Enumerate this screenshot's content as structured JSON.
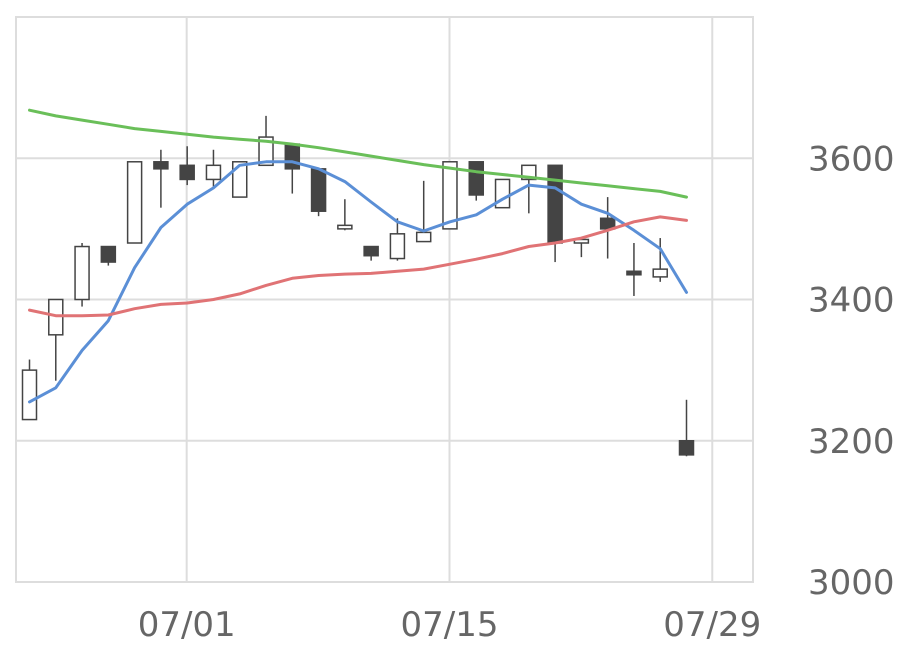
{
  "chart_data": {
    "type": "candlestick",
    "x_ticks": [
      "07/01",
      "07/15",
      "07/29"
    ],
    "y_ticks": [
      3000,
      3200,
      3400,
      3600
    ],
    "ylim": [
      3000,
      3800
    ],
    "grid": true,
    "y_axis_position": "right",
    "candles": [
      {
        "open": 3230,
        "high": 3315,
        "low": 3230,
        "close": 3300
      },
      {
        "open": 3350,
        "high": 3400,
        "low": 3285,
        "close": 3400
      },
      {
        "open": 3400,
        "high": 3480,
        "low": 3390,
        "close": 3475
      },
      {
        "open": 3475,
        "high": 3475,
        "low": 3448,
        "close": 3453
      },
      {
        "open": 3480,
        "high": 3595,
        "low": 3480,
        "close": 3595
      },
      {
        "open": 3595,
        "high": 3612,
        "low": 3530,
        "close": 3585
      },
      {
        "open": 3590,
        "high": 3617,
        "low": 3562,
        "close": 3570
      },
      {
        "open": 3570,
        "high": 3612,
        "low": 3560,
        "close": 3590
      },
      {
        "open": 3545,
        "high": 3595,
        "low": 3545,
        "close": 3595
      },
      {
        "open": 3590,
        "high": 3660,
        "low": 3590,
        "close": 3630
      },
      {
        "open": 3620,
        "high": 3620,
        "low": 3550,
        "close": 3585
      },
      {
        "open": 3585,
        "high": 3585,
        "low": 3518,
        "close": 3525
      },
      {
        "open": 3500,
        "high": 3542,
        "low": 3498,
        "close": 3505
      },
      {
        "open": 3475,
        "high": 3475,
        "low": 3455,
        "close": 3462
      },
      {
        "open": 3458,
        "high": 3515,
        "low": 3455,
        "close": 3493
      },
      {
        "open": 3482,
        "high": 3568,
        "low": 3482,
        "close": 3495
      },
      {
        "open": 3500,
        "high": 3595,
        "low": 3500,
        "close": 3595
      },
      {
        "open": 3595,
        "high": 3595,
        "low": 3540,
        "close": 3548
      },
      {
        "open": 3530,
        "high": 3570,
        "low": 3530,
        "close": 3570
      },
      {
        "open": 3570,
        "high": 3590,
        "low": 3522,
        "close": 3590
      },
      {
        "open": 3590,
        "high": 3590,
        "low": 3453,
        "close": 3480
      },
      {
        "open": 3480,
        "high": 3488,
        "low": 3460,
        "close": 3485
      },
      {
        "open": 3515,
        "high": 3545,
        "low": 3458,
        "close": 3500
      },
      {
        "open": 3440,
        "high": 3480,
        "low": 3405,
        "close": 3435
      },
      {
        "open": 3432,
        "high": 3487,
        "low": 3425,
        "close": 3443
      },
      {
        "open": 3200,
        "high": 3258,
        "low": 3178,
        "close": 3180
      }
    ],
    "series": [
      {
        "color": "#5b8fd6",
        "values": [
          3255,
          3275,
          3328,
          3370,
          3445,
          3502,
          3535,
          3558,
          3590,
          3595,
          3595,
          3585,
          3567,
          3538,
          3510,
          3497,
          3510,
          3520,
          3542,
          3562,
          3558,
          3535,
          3522,
          3498,
          3472,
          3410
        ]
      },
      {
        "color": "#e07375",
        "values": [
          3385,
          3377,
          3377,
          3378,
          3387,
          3393,
          3395,
          3400,
          3408,
          3420,
          3430,
          3434,
          3436,
          3437,
          3440,
          3443,
          3450,
          3457,
          3465,
          3475,
          3480,
          3487,
          3498,
          3510,
          3517,
          3512
        ]
      },
      {
        "color": "#6abf59",
        "values": [
          3668,
          3660,
          3654,
          3648,
          3642,
          3638,
          3634,
          3630,
          3627,
          3624,
          3620,
          3615,
          3609,
          3603,
          3597,
          3591,
          3586,
          3581,
          3577,
          3573,
          3569,
          3565,
          3561,
          3557,
          3553,
          3545
        ]
      }
    ],
    "colors": {
      "up_fill": "#ffffff",
      "down_fill": "#444444",
      "wick": "#444444",
      "grid": "#dddddd"
    }
  }
}
